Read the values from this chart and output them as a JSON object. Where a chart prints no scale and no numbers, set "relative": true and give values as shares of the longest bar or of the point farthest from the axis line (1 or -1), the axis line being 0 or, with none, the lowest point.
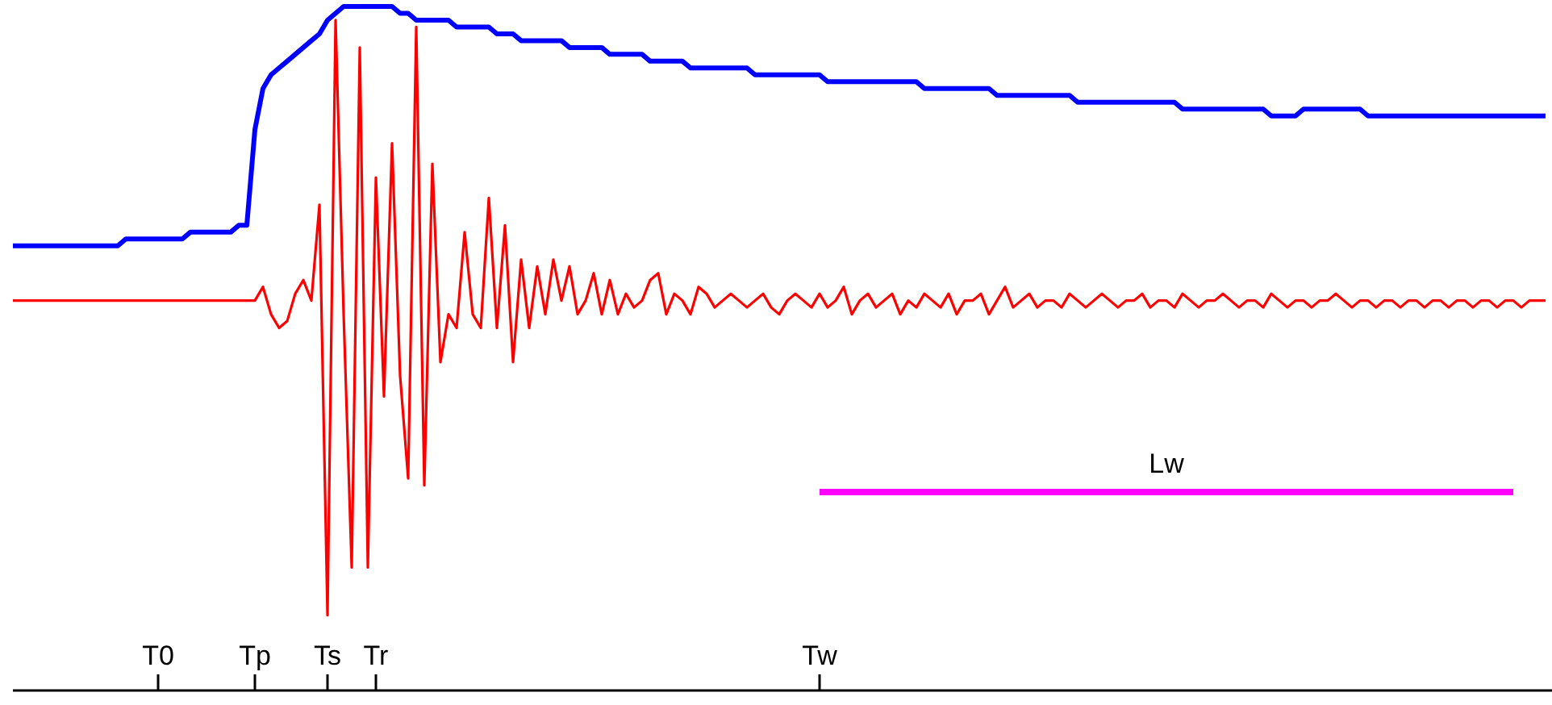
{
  "chart_data": {
    "type": "line",
    "relative": true,
    "categories": [
      null,
      null,
      null,
      null,
      null,
      null,
      null,
      null,
      null,
      null,
      null,
      null,
      null,
      null,
      null,
      null,
      null,
      null,
      "T0",
      null,
      null,
      null,
      null,
      null,
      null,
      null,
      null,
      null,
      null,
      null,
      "Tp",
      null,
      null,
      null,
      null,
      null,
      null,
      null,
      null,
      "Ts",
      null,
      null,
      null,
      null,
      null,
      "Tr",
      null,
      null,
      null,
      null,
      null,
      null,
      null,
      null,
      null,
      null,
      null,
      null,
      null,
      null,
      null,
      null,
      null,
      null,
      null,
      null,
      null,
      null,
      null,
      null,
      null,
      null,
      null,
      null,
      null,
      null,
      null,
      null,
      null,
      null,
      null,
      null,
      null,
      null,
      null,
      null,
      null,
      null,
      null,
      null,
      null,
      null,
      null,
      null,
      null,
      null,
      null,
      null,
      null,
      null,
      "Tw",
      null,
      null,
      null,
      null,
      null,
      null,
      null,
      null,
      null,
      null,
      null,
      null,
      null,
      null,
      null,
      null,
      null,
      null,
      null,
      null,
      null,
      null,
      null,
      null,
      null,
      null,
      null,
      null,
      null,
      null,
      null,
      null,
      null,
      null,
      null,
      null,
      null,
      null,
      null,
      null,
      null,
      null,
      null,
      null,
      null,
      null,
      null,
      null,
      null,
      null,
      null,
      null,
      null,
      null,
      null,
      null,
      null,
      null,
      null,
      null,
      null,
      null,
      null,
      null,
      null,
      null,
      null,
      null,
      null,
      null,
      null,
      null,
      null,
      null,
      null,
      null,
      null,
      null,
      null,
      null,
      null,
      null,
      null,
      null,
      null,
      null,
      null,
      null,
      null,
      null
    ],
    "grid": false,
    "marker": "none",
    "line_style": "solid",
    "series": [
      {
        "color": "#0000ff",
        "values": [
          0.65,
          0.65,
          0.65,
          0.65,
          0.65,
          0.65,
          0.65,
          0.65,
          0.65,
          0.65,
          0.65,
          0.65,
          0.65,
          0.65,
          0.66,
          0.66,
          0.66,
          0.66,
          0.66,
          0.66,
          0.66,
          0.66,
          0.67,
          0.67,
          0.67,
          0.67,
          0.67,
          0.67,
          0.68,
          0.68,
          0.82,
          0.88,
          0.9,
          0.91,
          0.92,
          0.93,
          0.94,
          0.95,
          0.96,
          0.98,
          0.99,
          1,
          1,
          1,
          1,
          1,
          1,
          1,
          0.99,
          0.99,
          0.98,
          0.98,
          0.98,
          0.98,
          0.98,
          0.97,
          0.97,
          0.97,
          0.97,
          0.97,
          0.96,
          0.96,
          0.96,
          0.95,
          0.95,
          0.95,
          0.95,
          0.95,
          0.95,
          0.94,
          0.94,
          0.94,
          0.94,
          0.94,
          0.93,
          0.93,
          0.93,
          0.93,
          0.93,
          0.92,
          0.92,
          0.92,
          0.92,
          0.92,
          0.91,
          0.91,
          0.91,
          0.91,
          0.91,
          0.91,
          0.91,
          0.91,
          0.9,
          0.9,
          0.9,
          0.9,
          0.9,
          0.9,
          0.9,
          0.9,
          0.9,
          0.89,
          0.89,
          0.89,
          0.89,
          0.89,
          0.89,
          0.89,
          0.89,
          0.89,
          0.89,
          0.89,
          0.89,
          0.88,
          0.88,
          0.88,
          0.88,
          0.88,
          0.88,
          0.88,
          0.88,
          0.88,
          0.87,
          0.87,
          0.87,
          0.87,
          0.87,
          0.87,
          0.87,
          0.87,
          0.87,
          0.87,
          0.86,
          0.86,
          0.86,
          0.86,
          0.86,
          0.86,
          0.86,
          0.86,
          0.86,
          0.86,
          0.86,
          0.86,
          0.86,
          0.85,
          0.85,
          0.85,
          0.85,
          0.85,
          0.85,
          0.85,
          0.85,
          0.85,
          0.85,
          0.85,
          0.84,
          0.84,
          0.84,
          0.84,
          0.85,
          0.85,
          0.85,
          0.85,
          0.85,
          0.85,
          0.85,
          0.85,
          0.84,
          0.84,
          0.84,
          0.84,
          0.84,
          0.84,
          0.84,
          0.84,
          0.84,
          0.84,
          0.84,
          0.84,
          0.84,
          0.84,
          0.84,
          0.84,
          0.84,
          0.84,
          0.84,
          0.84,
          0.84,
          0.84,
          0.84
        ]
      },
      {
        "color": "#ff0000",
        "values": [
          0.57,
          0.57,
          0.57,
          0.57,
          0.57,
          0.57,
          0.57,
          0.57,
          0.57,
          0.57,
          0.57,
          0.57,
          0.57,
          0.57,
          0.57,
          0.57,
          0.57,
          0.57,
          0.57,
          0.57,
          0.57,
          0.57,
          0.57,
          0.57,
          0.57,
          0.57,
          0.57,
          0.57,
          0.57,
          0.57,
          0.57,
          0.59,
          0.55,
          0.53,
          0.54,
          0.58,
          0.6,
          0.57,
          0.71,
          0.11,
          0.98,
          0.55,
          0.18,
          0.94,
          0.18,
          0.75,
          0.43,
          0.8,
          0.46,
          0.31,
          0.97,
          0.3,
          0.77,
          0.48,
          0.55,
          0.53,
          0.67,
          0.55,
          0.53,
          0.72,
          0.53,
          0.68,
          0.48,
          0.63,
          0.53,
          0.62,
          0.55,
          0.63,
          0.57,
          0.62,
          0.55,
          0.57,
          0.61,
          0.55,
          0.6,
          0.55,
          0.58,
          0.56,
          0.57,
          0.6,
          0.61,
          0.55,
          0.58,
          0.57,
          0.55,
          0.59,
          0.58,
          0.56,
          0.57,
          0.58,
          0.57,
          0.56,
          0.57,
          0.58,
          0.56,
          0.55,
          0.57,
          0.58,
          0.57,
          0.56,
          0.58,
          0.56,
          0.57,
          0.59,
          0.55,
          0.57,
          0.58,
          0.56,
          0.57,
          0.58,
          0.55,
          0.57,
          0.56,
          0.58,
          0.57,
          0.56,
          0.58,
          0.55,
          0.57,
          0.57,
          0.58,
          0.55,
          0.57,
          0.59,
          0.56,
          0.57,
          0.58,
          0.56,
          0.57,
          0.57,
          0.56,
          0.58,
          0.57,
          0.56,
          0.57,
          0.58,
          0.57,
          0.56,
          0.57,
          0.57,
          0.58,
          0.56,
          0.57,
          0.57,
          0.56,
          0.58,
          0.57,
          0.56,
          0.57,
          0.57,
          0.58,
          0.57,
          0.56,
          0.57,
          0.57,
          0.56,
          0.58,
          0.57,
          0.56,
          0.57,
          0.57,
          0.56,
          0.57,
          0.57,
          0.58,
          0.57,
          0.56,
          0.57,
          0.57,
          0.56,
          0.57,
          0.57,
          0.56,
          0.57,
          0.57,
          0.56,
          0.57,
          0.57,
          0.56,
          0.57,
          0.57,
          0.56,
          0.57,
          0.57,
          0.56,
          0.57,
          0.57,
          0.56,
          0.57,
          0.57,
          0.57
        ]
      },
      {
        "name": "Lw",
        "color": "#ff00ff",
        "values": [
          null,
          null,
          null,
          null,
          null,
          null,
          null,
          null,
          null,
          null,
          null,
          null,
          null,
          null,
          null,
          null,
          null,
          null,
          null,
          null,
          null,
          null,
          null,
          null,
          null,
          null,
          null,
          null,
          null,
          null,
          null,
          null,
          null,
          null,
          null,
          null,
          null,
          null,
          null,
          null,
          null,
          null,
          null,
          null,
          null,
          null,
          null,
          null,
          null,
          null,
          null,
          null,
          null,
          null,
          null,
          null,
          null,
          null,
          null,
          null,
          null,
          null,
          null,
          null,
          null,
          null,
          null,
          null,
          null,
          null,
          null,
          null,
          null,
          null,
          null,
          null,
          null,
          null,
          null,
          null,
          null,
          null,
          null,
          null,
          null,
          null,
          null,
          null,
          null,
          null,
          null,
          null,
          null,
          null,
          null,
          null,
          null,
          null,
          null,
          null,
          0.29,
          0.29,
          0.29,
          0.29,
          0.29,
          0.29,
          0.29,
          0.29,
          0.29,
          0.29,
          0.29,
          0.29,
          0.29,
          0.29,
          0.29,
          0.29,
          0.29,
          0.29,
          0.29,
          0.29,
          0.29,
          0.29,
          0.29,
          0.29,
          0.29,
          0.29,
          0.29,
          0.29,
          0.29,
          0.29,
          0.29,
          0.29,
          0.29,
          0.29,
          0.29,
          0.29,
          0.29,
          0.29,
          0.29,
          0.29,
          0.29,
          0.29,
          0.29,
          0.29,
          0.29,
          0.29,
          0.29,
          0.29,
          0.29,
          0.29,
          0.29,
          0.29,
          0.29,
          0.29,
          0.29,
          0.29,
          0.29,
          0.29,
          0.29,
          0.29,
          0.29,
          0.29,
          0.29,
          0.29,
          0.29,
          0.29,
          0.29,
          0.29,
          0.29,
          0.29,
          0.29,
          0.29,
          0.29,
          0.29,
          0.29,
          0.29,
          0.29,
          0.29,
          0.29,
          0.29,
          0.29,
          0.29,
          0.29,
          0.29,
          0.29,
          0.29,
          0.29,
          null,
          null,
          null,
          null
        ]
      }
    ]
  }
}
